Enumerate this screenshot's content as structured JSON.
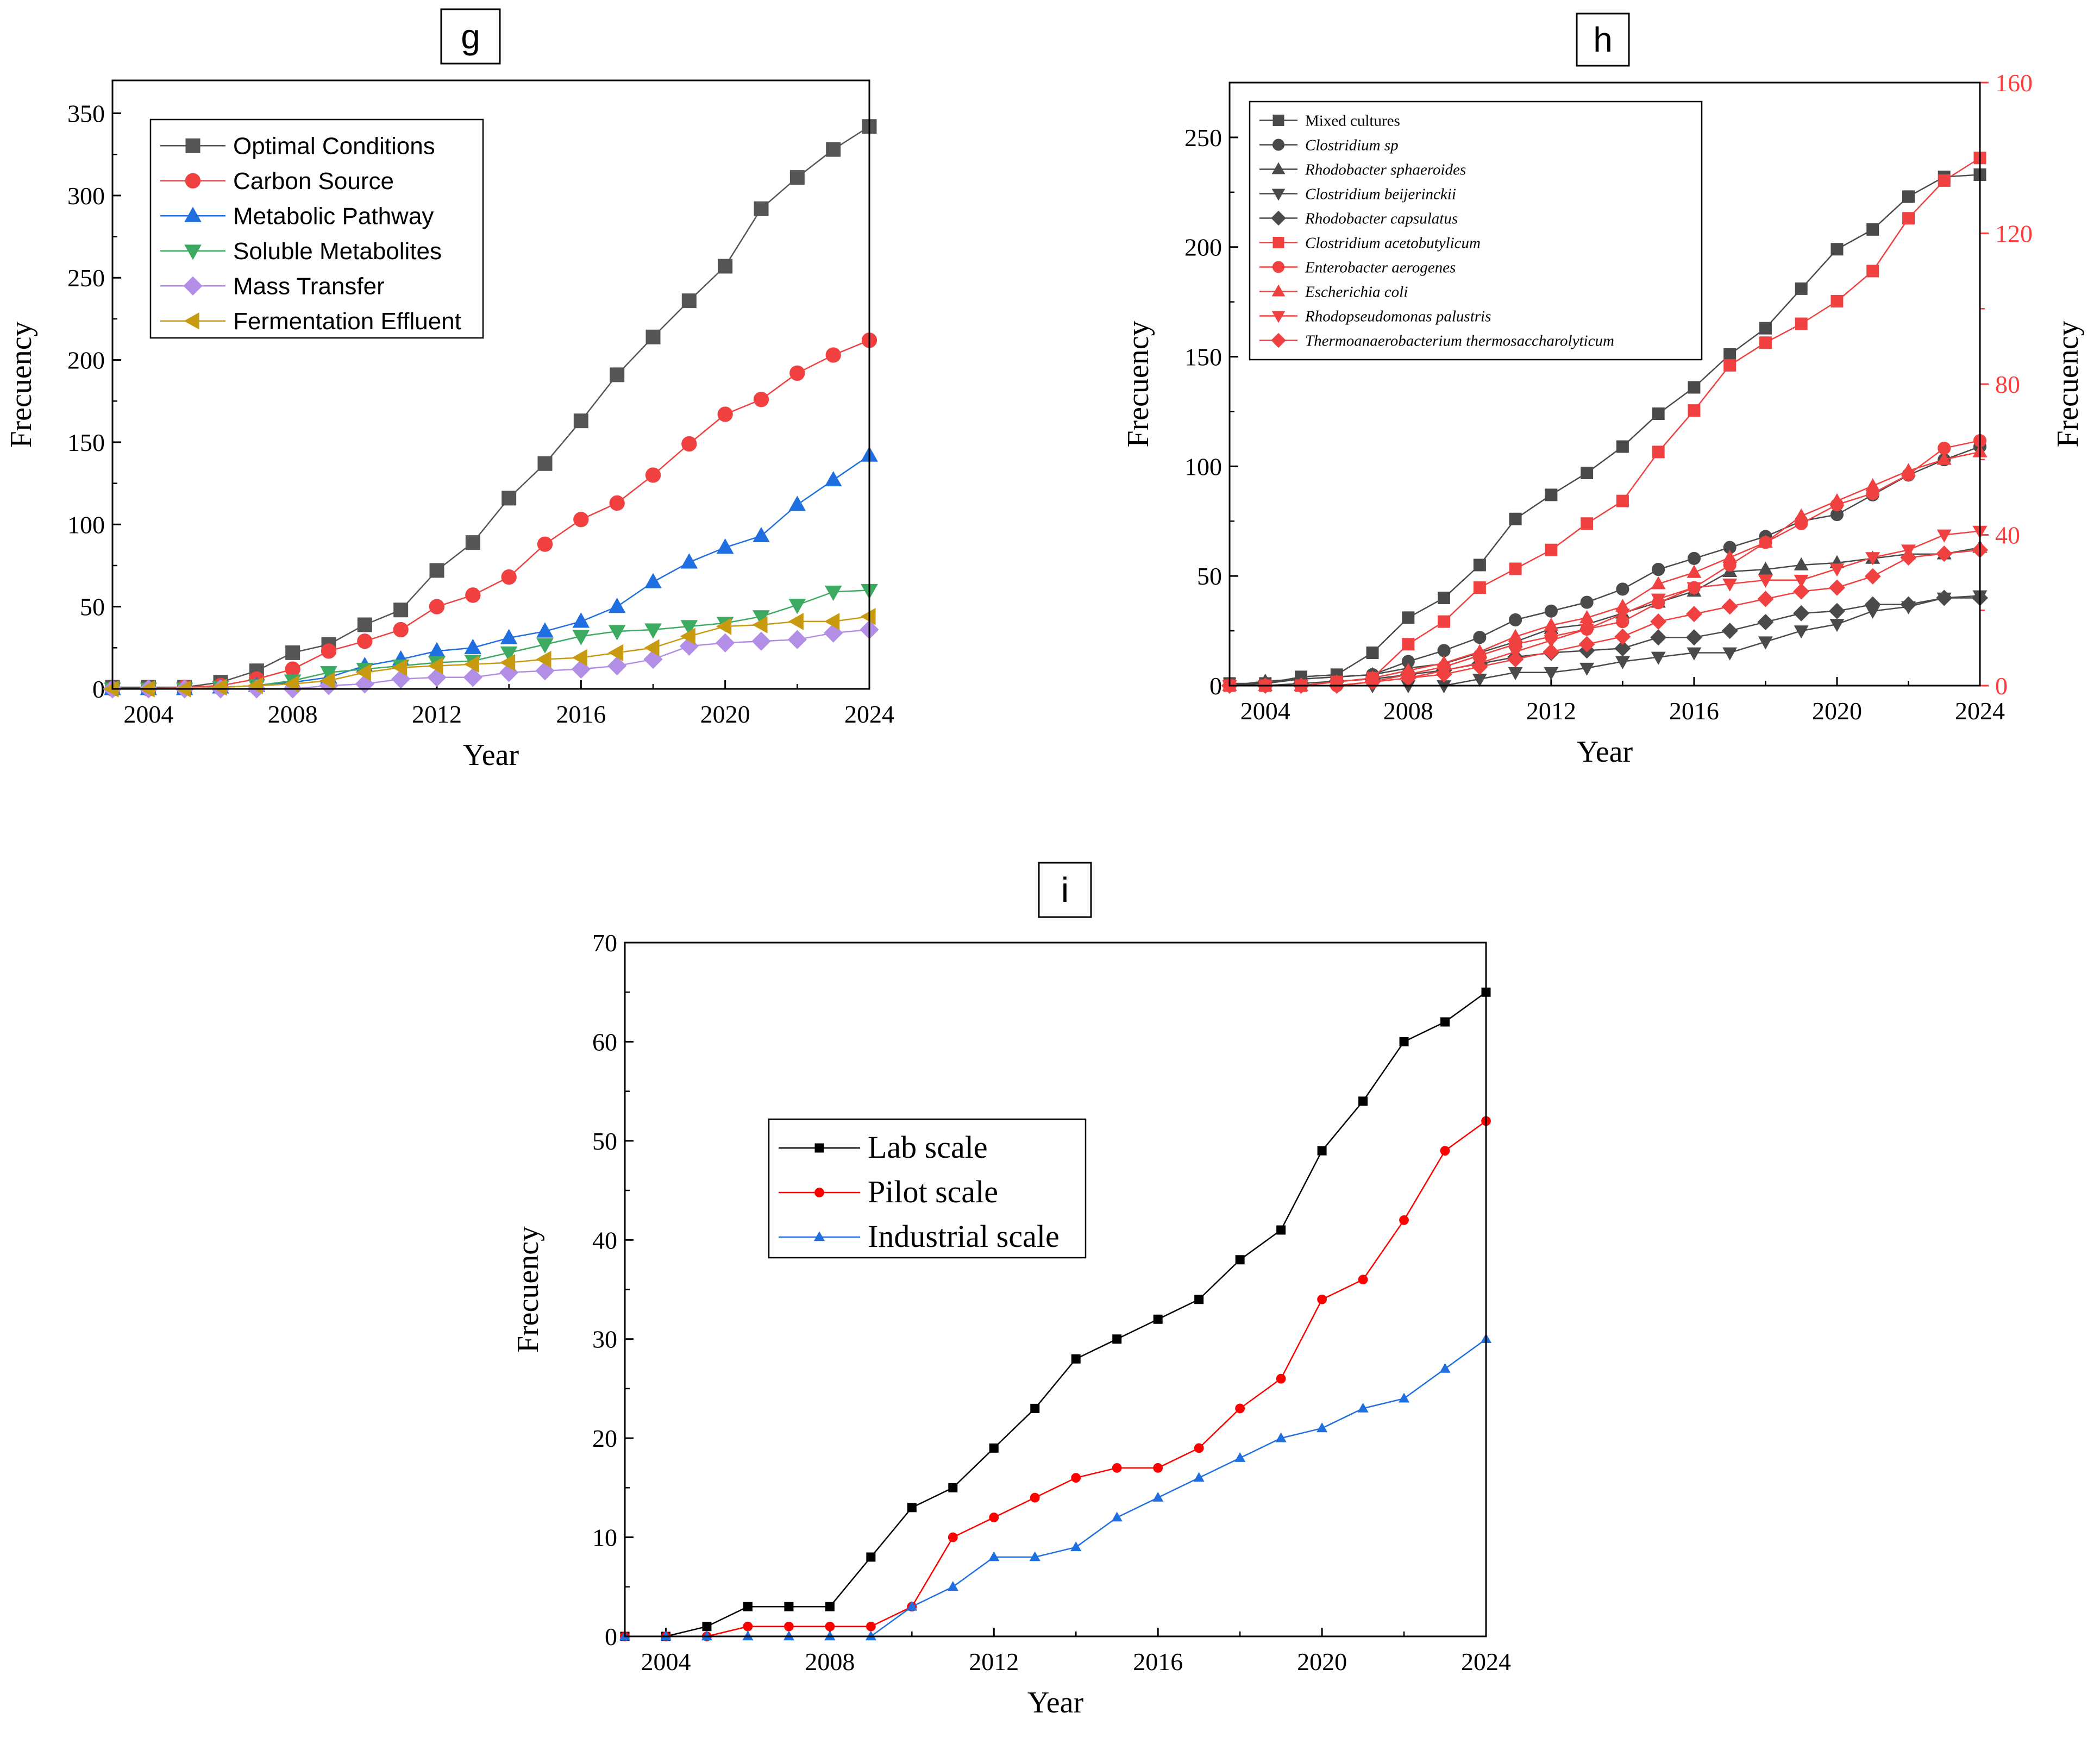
{
  "chart_data": [
    {
      "panel": "g",
      "type": "line",
      "title": "g",
      "xlabel": "Year",
      "ylabel": "Frecuency",
      "xlim": [
        2003,
        2024
      ],
      "ylim": [
        0,
        370
      ],
      "xticks": [
        2004,
        2008,
        2012,
        2016,
        2020,
        2024
      ],
      "yticks": [
        0,
        50,
        100,
        150,
        200,
        250,
        300,
        350
      ],
      "x": [
        2003,
        2004,
        2005,
        2006,
        2007,
        2008,
        2009,
        2010,
        2011,
        2012,
        2013,
        2014,
        2015,
        2016,
        2017,
        2018,
        2019,
        2020,
        2021,
        2022,
        2023,
        2024
      ],
      "series": [
        {
          "name": "Optimal Conditions",
          "color": "#555555",
          "marker": "square",
          "values": [
            1,
            1,
            1,
            4,
            11,
            22,
            27,
            39,
            48,
            72,
            89,
            116,
            137,
            163,
            191,
            214,
            236,
            257,
            292,
            311,
            328,
            342
          ]
        },
        {
          "name": "Carbon Source",
          "color": "#f04040",
          "marker": "circle",
          "values": [
            0,
            0,
            1,
            2,
            6,
            12,
            23,
            29,
            36,
            50,
            57,
            68,
            88,
            103,
            113,
            130,
            149,
            167,
            176,
            192,
            203,
            212
          ]
        },
        {
          "name": "Metabolic Pathway",
          "color": "#1f6fe0",
          "marker": "triangle-up",
          "values": [
            0,
            0,
            0,
            1,
            2,
            4,
            7,
            14,
            18,
            23,
            25,
            31,
            35,
            41,
            50,
            65,
            77,
            86,
            93,
            112,
            127,
            142
          ]
        },
        {
          "name": "Soluble Metabolites",
          "color": "#3daa62",
          "marker": "triangle-down",
          "values": [
            0,
            0,
            0,
            1,
            2,
            5,
            10,
            12,
            14,
            16,
            17,
            22,
            27,
            32,
            35,
            36,
            38,
            40,
            44,
            51,
            59,
            60
          ]
        },
        {
          "name": "Mass Transfer",
          "color": "#b38ee6",
          "marker": "diamond",
          "values": [
            0,
            0,
            0,
            0,
            0,
            0,
            2,
            3,
            6,
            7,
            7,
            10,
            11,
            12,
            14,
            18,
            26,
            28,
            29,
            30,
            34,
            36
          ]
        },
        {
          "name": "Fermentation Effluent",
          "color": "#c89a10",
          "marker": "triangle-left",
          "values": [
            0,
            0,
            0,
            1,
            2,
            3,
            5,
            10,
            13,
            14,
            15,
            16,
            18,
            19,
            22,
            25,
            32,
            38,
            39,
            41,
            41,
            44
          ]
        }
      ]
    },
    {
      "panel": "h",
      "type": "line",
      "title": "h",
      "xlabel": "Year",
      "ylabel": "Frecuency",
      "y2label": "Frecuency",
      "xlim": [
        2003,
        2024
      ],
      "ylim": [
        0,
        275
      ],
      "y2lim": [
        0,
        160
      ],
      "xticks": [
        2004,
        2008,
        2012,
        2016,
        2020,
        2024
      ],
      "yticks": [
        0,
        50,
        100,
        150,
        200,
        250
      ],
      "y2ticks": [
        0,
        40,
        80,
        120,
        160
      ],
      "x": [
        2003,
        2004,
        2005,
        2006,
        2007,
        2008,
        2009,
        2010,
        2011,
        2012,
        2013,
        2014,
        2015,
        2016,
        2017,
        2018,
        2019,
        2020,
        2021,
        2022,
        2023,
        2024
      ],
      "series": [
        {
          "name": "Mixed cultures",
          "axis": "left",
          "color": "#4a4a4a",
          "marker": "square",
          "italic": false,
          "values": [
            1,
            1,
            4,
            5,
            15,
            31,
            40,
            55,
            76,
            87,
            97,
            109,
            124,
            136,
            151,
            163,
            181,
            199,
            208,
            223,
            232,
            233
          ]
        },
        {
          "name": "Clostridium sp",
          "axis": "left",
          "color": "#4a4a4a",
          "marker": "circle",
          "italic": true,
          "values": [
            0,
            1,
            3,
            4,
            5,
            11,
            16,
            22,
            30,
            34,
            38,
            44,
            53,
            58,
            63,
            68,
            75,
            78,
            87,
            96,
            103,
            109
          ]
        },
        {
          "name": "Rhodobacter sphaeroides",
          "axis": "left",
          "color": "#4a4a4a",
          "marker": "triangle-up",
          "italic": true,
          "values": [
            0,
            2,
            3,
            4,
            5,
            8,
            10,
            15,
            20,
            26,
            28,
            33,
            38,
            43,
            52,
            53,
            55,
            56,
            58,
            60,
            60,
            63
          ]
        },
        {
          "name": "Clostridium beijerinckii",
          "axis": "left",
          "color": "#4a4a4a",
          "marker": "triangle-down",
          "italic": true,
          "values": [
            0,
            0,
            0,
            0,
            0,
            0,
            0,
            3,
            6,
            6,
            8,
            11,
            13,
            15,
            15,
            20,
            25,
            28,
            34,
            36,
            40,
            41
          ]
        },
        {
          "name": "Rhodobacter capsulatus",
          "axis": "left",
          "color": "#4a4a4a",
          "marker": "diamond",
          "italic": true,
          "values": [
            0,
            0,
            1,
            2,
            3,
            5,
            7,
            10,
            13,
            15,
            16,
            17,
            22,
            22,
            25,
            29,
            33,
            34,
            37,
            37,
            40,
            40
          ]
        },
        {
          "name": "Clostridium acetobutylicum",
          "axis": "right",
          "color": "#f04040",
          "marker": "square",
          "italic": true,
          "values": [
            0,
            0,
            0,
            1,
            2,
            11,
            17,
            26,
            31,
            36,
            43,
            49,
            62,
            73,
            85,
            91,
            96,
            102,
            110,
            124,
            134,
            140
          ]
        },
        {
          "name": "Enterobacter aerogenes",
          "axis": "right",
          "color": "#f04040",
          "marker": "circle",
          "italic": true,
          "values": [
            0,
            0,
            0,
            0,
            1,
            3,
            5,
            8,
            11,
            13,
            15,
            17,
            22,
            26,
            32,
            38,
            43,
            48,
            51,
            56,
            63,
            65
          ]
        },
        {
          "name": "Escherichia coli",
          "axis": "right",
          "color": "#f04040",
          "marker": "triangle-up",
          "italic": true,
          "values": [
            0,
            0,
            0,
            1,
            2,
            4,
            6,
            9,
            13,
            16,
            18,
            21,
            27,
            30,
            34,
            38,
            45,
            49,
            53,
            57,
            60,
            62
          ]
        },
        {
          "name": "Rhodopseudomonas palustris",
          "axis": "right",
          "color": "#f04040",
          "marker": "triangle-down",
          "italic": true,
          "values": [
            0,
            0,
            0,
            0,
            1,
            2,
            4,
            6,
            9,
            12,
            15,
            19,
            23,
            26,
            27,
            28,
            28,
            31,
            34,
            36,
            40,
            41
          ]
        },
        {
          "name": "Thermoanaerobacterium thermosaccharolyticum",
          "axis": "right",
          "color": "#f04040",
          "marker": "diamond",
          "italic": true,
          "values": [
            0,
            0,
            0,
            0,
            1,
            2,
            3,
            5,
            7,
            9,
            11,
            13,
            17,
            19,
            21,
            23,
            25,
            26,
            29,
            34,
            35,
            36
          ]
        }
      ]
    },
    {
      "panel": "i",
      "type": "line",
      "title": "i",
      "xlabel": "Year",
      "ylabel": "Frecuency",
      "xlim": [
        2003,
        2024
      ],
      "ylim": [
        0,
        70
      ],
      "xticks": [
        2004,
        2008,
        2012,
        2016,
        2020,
        2024
      ],
      "yticks": [
        0,
        10,
        20,
        30,
        40,
        50,
        60,
        70
      ],
      "x": [
        2003,
        2004,
        2005,
        2006,
        2007,
        2008,
        2009,
        2010,
        2011,
        2012,
        2013,
        2014,
        2015,
        2016,
        2017,
        2018,
        2019,
        2020,
        2021,
        2022,
        2023,
        2024
      ],
      "series": [
        {
          "name": "Lab scale",
          "color": "#000000",
          "marker": "square",
          "values": [
            0,
            0,
            1,
            3,
            3,
            3,
            8,
            13,
            15,
            19,
            23,
            28,
            30,
            32,
            34,
            38,
            41,
            49,
            54,
            60,
            62,
            65
          ]
        },
        {
          "name": "Pilot scale",
          "color": "#ff0000",
          "marker": "circle",
          "values": [
            0,
            0,
            0,
            1,
            1,
            1,
            1,
            3,
            10,
            12,
            14,
            16,
            17,
            17,
            19,
            23,
            26,
            34,
            36,
            42,
            49,
            52
          ]
        },
        {
          "name": "Industrial scale",
          "color": "#1f6fe0",
          "marker": "triangle-up",
          "values": [
            0,
            0,
            0,
            0,
            0,
            0,
            0,
            3,
            5,
            8,
            8,
            9,
            12,
            14,
            16,
            18,
            20,
            21,
            23,
            24,
            27,
            30
          ]
        }
      ]
    }
  ]
}
